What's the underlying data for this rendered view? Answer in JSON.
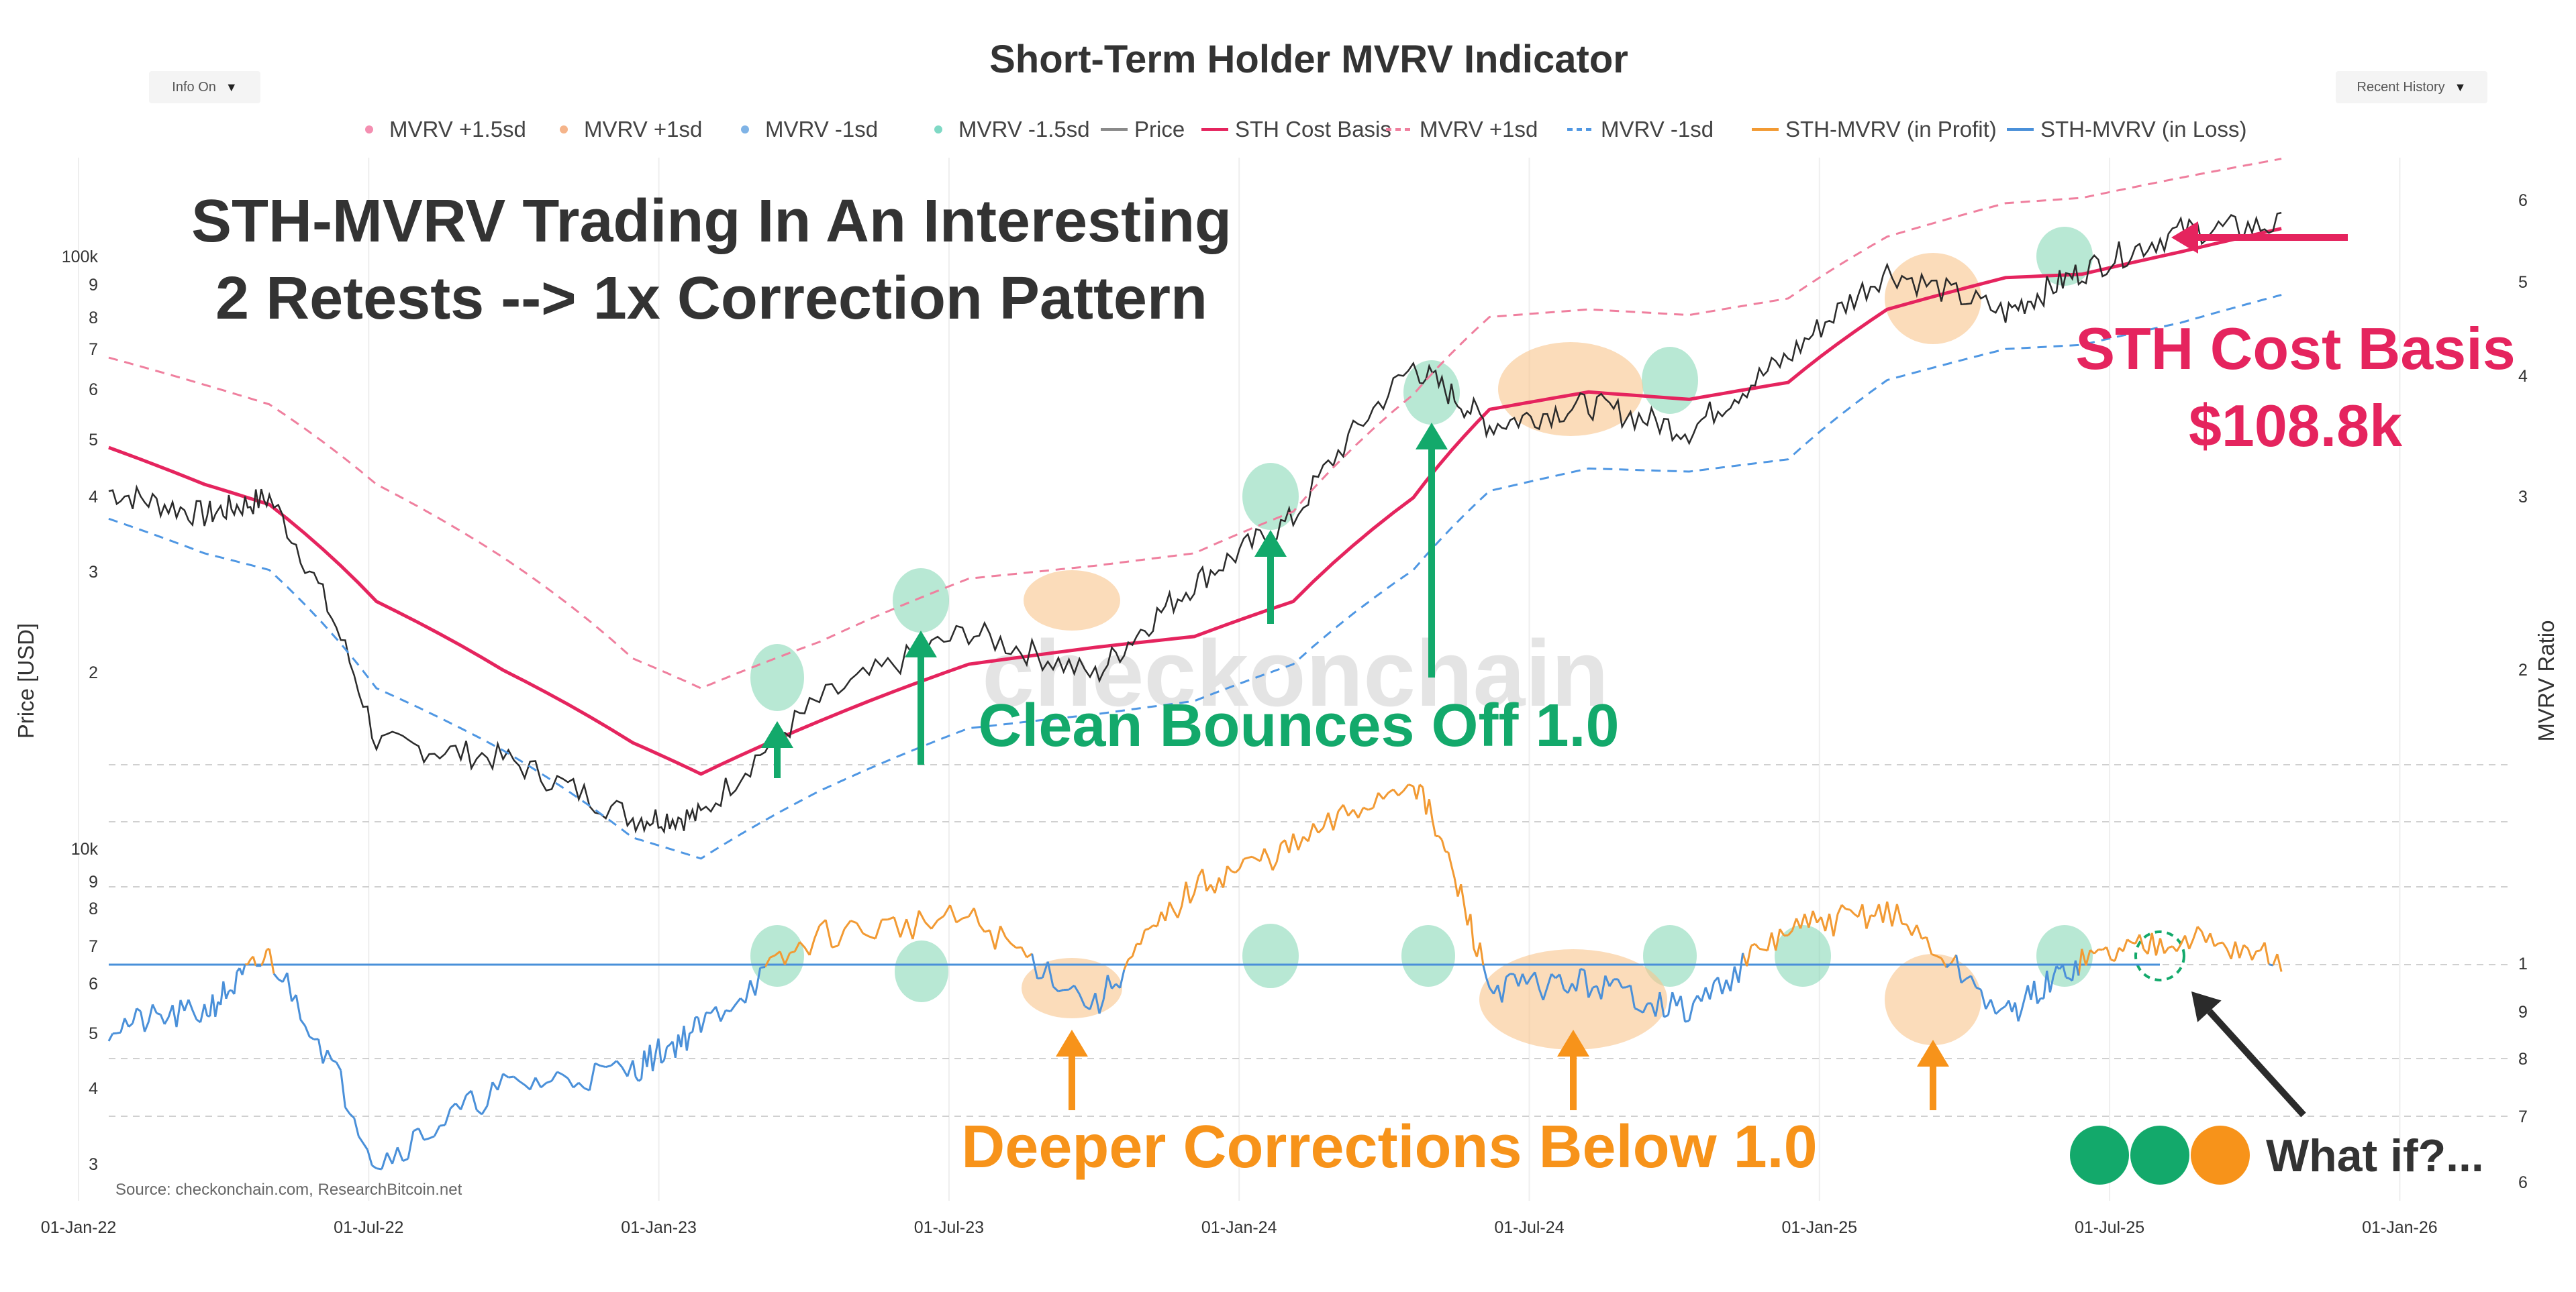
{
  "header": {
    "title": "Short-Term Holder MVRV Indicator",
    "info_dropdown": "Info On",
    "range_dropdown": "Recent History"
  },
  "legend": [
    {
      "label": "MVRV +1.5sd",
      "kind": "dot",
      "color": "#f48fb1"
    },
    {
      "label": "MVRV +1sd",
      "kind": "dot",
      "color": "#f5b48a"
    },
    {
      "label": "MVRV -1sd",
      "kind": "dot",
      "color": "#7fb3e6"
    },
    {
      "label": "MVRV -1.5sd",
      "kind": "dot",
      "color": "#7fd9c5"
    },
    {
      "label": "Price",
      "kind": "line",
      "color": "#8a8a8a"
    },
    {
      "label": "STH Cost Basis",
      "kind": "line",
      "color": "#e5245e"
    },
    {
      "label": "MVRV +1sd",
      "kind": "dash",
      "color": "#ef7f9e"
    },
    {
      "label": "MVRV -1sd",
      "kind": "dash",
      "color": "#4f97e3"
    },
    {
      "label": "STH-MVRV (in Profit)",
      "kind": "line",
      "color": "#f29a33"
    },
    {
      "label": "STH-MVRV (in Loss)",
      "kind": "line",
      "color": "#4a90d9"
    }
  ],
  "annotations": {
    "headline_line1": "STH-MVRV Trading In An Interesting",
    "headline_line2": "2 Retests --> 1x Correction Pattern",
    "watermark": "checkonchain",
    "bounces": "Clean Bounces Off 1.0",
    "cost_basis_line1": "STH Cost Basis",
    "cost_basis_line2": "$108.8k",
    "corrections": "Deeper Corrections Below 1.0",
    "what_if": "What if?...",
    "source": "Source: checkonchain.com, ResearchBitcoin.net"
  },
  "colors": {
    "cost_basis": "#e5245e",
    "profit": "#f29a33",
    "loss": "#4a90d9",
    "green": "#13a96b",
    "orange": "#f7931a",
    "price": "#2b2b2b"
  },
  "chart_data": [
    {
      "type": "line",
      "panel": "top",
      "x_range": [
        "2022-01-01",
        "2026-01-20"
      ],
      "x_ticks": [
        "01-Jan-22",
        "01-Jul-22",
        "01-Jan-23",
        "01-Jul-23",
        "01-Jan-24",
        "01-Jul-24",
        "01-Jan-25",
        "01-Jul-25",
        "01-Jan-26"
      ],
      "y_scale": "log",
      "ylabel": "Price [USD]",
      "y2label": "MVRV Ratio",
      "y_ticks_left": [
        "100k",
        "9",
        "8",
        "7",
        "6",
        "5",
        "4",
        "3",
        "2"
      ],
      "y_ticks_right": [
        "6",
        "5",
        "4",
        "3",
        "2"
      ],
      "x": [
        "2022-01-01",
        "2022-03-01",
        "2022-04-10",
        "2022-06-15",
        "2022-09-01",
        "2022-11-20",
        "2023-01-01",
        "2023-03-15",
        "2023-06-15",
        "2023-09-01",
        "2023-11-01",
        "2024-01-01",
        "2024-03-15",
        "2024-05-01",
        "2024-07-01",
        "2024-09-01",
        "2024-11-01",
        "2025-01-01",
        "2025-03-15",
        "2025-05-01",
        "2025-07-01",
        "2025-09-01"
      ],
      "series": [
        {
          "name": "STH Cost Basis",
          "values": [
            54000,
            48000,
            45000,
            33000,
            26500,
            21000,
            19000,
            22500,
            27000,
            28500,
            29500,
            33000,
            46000,
            61000,
            64500,
            63000,
            66500,
            84000,
            93000,
            94000,
            101000,
            108800
          ]
        },
        {
          "name": "Price",
          "values": [
            47000,
            43500,
            46000,
            21000,
            20000,
            16500,
            16600,
            24000,
            30000,
            26000,
            35000,
            43000,
            70000,
            58000,
            62000,
            57000,
            72000,
            95000,
            83000,
            95000,
            108000,
            110000
          ]
        },
        {
          "name": "MVRV +1sd",
          "values": [
            72000,
            66000,
            62000,
            48000,
            38000,
            27500,
            25000,
            29000,
            35500,
            37000,
            38500,
            44000,
            64000,
            82000,
            84000,
            82500,
            87000,
            106000,
            118000,
            120000,
            128000,
            136000
          ]
        },
        {
          "name": "MVRV -1sd",
          "values": [
            43000,
            38500,
            36500,
            25000,
            20500,
            15500,
            14500,
            18000,
            22000,
            23000,
            24000,
            27000,
            36500,
            47000,
            50500,
            50000,
            52000,
            67000,
            74000,
            75000,
            80500,
            88000
          ]
        }
      ]
    },
    {
      "type": "line",
      "panel": "bottom",
      "x_range": [
        "2022-01-01",
        "2026-01-20"
      ],
      "y_scale": "log",
      "reference_level": 1.0,
      "y_ticks_left": [
        "10k",
        "9",
        "8",
        "7",
        "6",
        "5",
        "4",
        "3"
      ],
      "y_ticks_right": [
        "1",
        "9",
        "8",
        "7",
        "6"
      ],
      "x": [
        "2022-01-01",
        "2022-03-01",
        "2022-04-10",
        "2022-06-15",
        "2022-09-01",
        "2022-11-20",
        "2023-01-01",
        "2023-03-15",
        "2023-06-15",
        "2023-09-01",
        "2023-11-01",
        "2024-01-01",
        "2024-03-15",
        "2024-05-01",
        "2024-07-01",
        "2024-09-01",
        "2024-11-01",
        "2025-01-01",
        "2025-03-15",
        "2025-05-01",
        "2025-07-01",
        "2025-09-01"
      ],
      "series": [
        {
          "name": "STH-MVRV",
          "values": [
            0.87,
            0.9,
            1.02,
            0.64,
            0.76,
            0.79,
            0.87,
            1.07,
            1.11,
            0.91,
            1.19,
            1.3,
            1.52,
            0.95,
            0.96,
            0.9,
            1.08,
            1.13,
            0.89,
            1.01,
            1.07,
            1.01
          ]
        }
      ]
    }
  ]
}
